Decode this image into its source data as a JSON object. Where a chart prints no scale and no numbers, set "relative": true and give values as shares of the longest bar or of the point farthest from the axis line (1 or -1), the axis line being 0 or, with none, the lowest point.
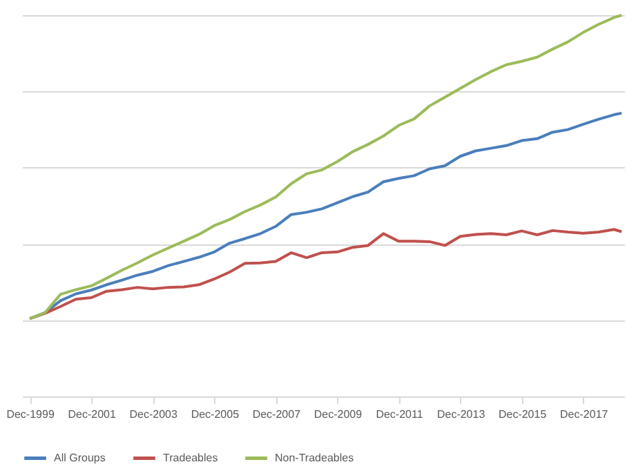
{
  "chart_data": {
    "type": "line",
    "relative": true,
    "grid": "y",
    "legend": "bottom",
    "marker": "none",
    "line_style": "solid",
    "tick_labels": "x",
    "x": [
      "1999-12",
      "2000-06",
      "2000-12",
      "2001-06",
      "2001-12",
      "2002-06",
      "2002-12",
      "2003-06",
      "2003-12",
      "2004-06",
      "2004-12",
      "2005-06",
      "2005-12",
      "2006-06",
      "2006-12",
      "2007-06",
      "2007-12",
      "2008-06",
      "2008-12",
      "2009-06",
      "2009-12",
      "2010-06",
      "2010-12",
      "2011-06",
      "2011-12",
      "2012-06",
      "2012-12",
      "2013-06",
      "2013-12",
      "2014-06",
      "2014-12",
      "2015-06",
      "2015-12",
      "2016-06",
      "2016-12",
      "2017-06",
      "2017-12",
      "2018-06",
      "2018-12",
      "2019-03"
    ],
    "xlim": [
      "1999-09",
      "2019-04"
    ],
    "xticks": [
      {
        "value": "1999-12",
        "label": "Dec-1999"
      },
      {
        "value": "2001-12",
        "label": "Dec-2001"
      },
      {
        "value": "2003-12",
        "label": "Dec-2003"
      },
      {
        "value": "2005-12",
        "label": "Dec-2005"
      },
      {
        "value": "2007-12",
        "label": "Dec-2007"
      },
      {
        "value": "2009-12",
        "label": "Dec-2009"
      },
      {
        "value": "2011-12",
        "label": "Dec-2011"
      },
      {
        "value": "2013-12",
        "label": "Dec-2013"
      },
      {
        "value": "2015-12",
        "label": "Dec-2015"
      },
      {
        "value": "2017-12",
        "label": "Dec-2017"
      }
    ],
    "series": [
      {
        "name": "All Groups",
        "color": "#4a7ebb",
        "values": [
          0.204,
          0.22,
          0.251,
          0.269,
          0.279,
          0.293,
          0.305,
          0.318,
          0.328,
          0.343,
          0.354,
          0.365,
          0.379,
          0.402,
          0.414,
          0.427,
          0.446,
          0.477,
          0.483,
          0.492,
          0.508,
          0.524,
          0.536,
          0.563,
          0.572,
          0.579,
          0.597,
          0.605,
          0.63,
          0.644,
          0.651,
          0.658,
          0.671,
          0.676,
          0.693,
          0.7,
          0.714,
          0.727,
          0.739,
          0.743
        ]
      },
      {
        "name": "Tradeables",
        "color": "#c0504d",
        "values": [
          0.204,
          0.218,
          0.236,
          0.255,
          0.259,
          0.276,
          0.28,
          0.286,
          0.282,
          0.286,
          0.287,
          0.293,
          0.308,
          0.326,
          0.349,
          0.35,
          0.354,
          0.377,
          0.364,
          0.377,
          0.379,
          0.391,
          0.396,
          0.427,
          0.407,
          0.407,
          0.406,
          0.396,
          0.42,
          0.425,
          0.427,
          0.424,
          0.434,
          0.424,
          0.435,
          0.431,
          0.428,
          0.431,
          0.438,
          0.432
        ]
      },
      {
        "name": "Non-Tradeables",
        "color": "#9bbb59",
        "values": [
          0.204,
          0.22,
          0.268,
          0.28,
          0.29,
          0.31,
          0.331,
          0.35,
          0.371,
          0.389,
          0.407,
          0.425,
          0.448,
          0.464,
          0.485,
          0.502,
          0.523,
          0.558,
          0.584,
          0.594,
          0.616,
          0.642,
          0.661,
          0.683,
          0.711,
          0.728,
          0.762,
          0.785,
          0.808,
          0.831,
          0.852,
          0.87,
          0.879,
          0.89,
          0.911,
          0.93,
          0.955,
          0.976,
          0.994,
          1
        ]
      }
    ]
  }
}
